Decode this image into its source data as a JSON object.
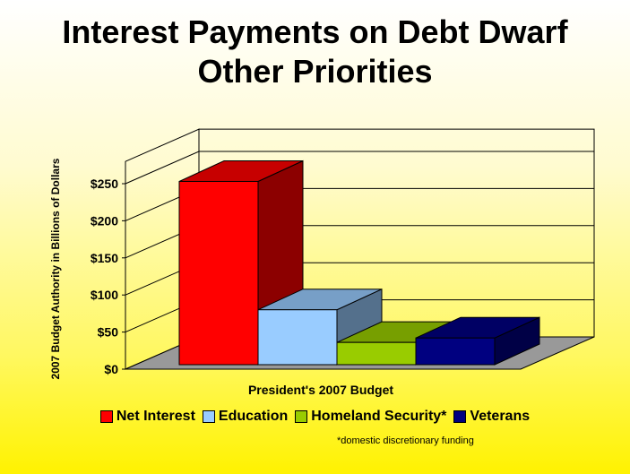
{
  "title_line1": "Interest Payments on Debt Dwarf",
  "title_line2": "Other Priorities",
  "footnote": "*domestic discretionary funding",
  "chart_data": {
    "type": "bar",
    "title": "Interest Payments on Debt Dwarf Other Priorities",
    "xlabel": "President's 2007 Budget",
    "ylabel": "2007 Budget Authority in Billions of Dollars",
    "ylim": [
      0,
      250
    ],
    "yticks": [
      "$0",
      "$50",
      "$100",
      "$150",
      "$200",
      "$250"
    ],
    "categories": [
      "President's 2007 Budget"
    ],
    "series": [
      {
        "name": "Net Interest",
        "values": [
          247
        ],
        "color": "#ff0000"
      },
      {
        "name": "Education",
        "values": [
          74
        ],
        "color": "#99ccff"
      },
      {
        "name": "Homeland Security*",
        "values": [
          30
        ],
        "color": "#99cc00"
      },
      {
        "name": "Veterans",
        "values": [
          36
        ],
        "color": "#000080"
      }
    ],
    "legend": "bottom",
    "grid": true
  }
}
